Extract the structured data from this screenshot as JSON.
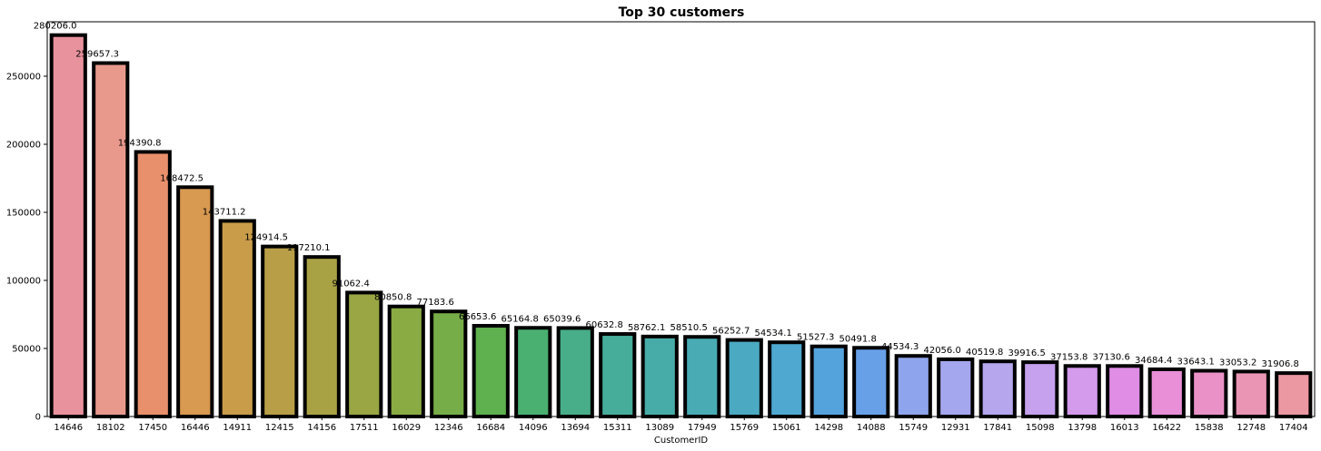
{
  "chart_data": {
    "type": "bar",
    "title": "Top 30 customers",
    "xlabel": "CustomerID",
    "ylabel": "",
    "ylim": [
      0,
      290000
    ],
    "yticks": [
      0,
      50000,
      100000,
      150000,
      200000,
      250000
    ],
    "grid": false,
    "legend": "none",
    "categories": [
      "14646",
      "18102",
      "17450",
      "16446",
      "14911",
      "12415",
      "14156",
      "17511",
      "16029",
      "12346",
      "16684",
      "14096",
      "13694",
      "15311",
      "13089",
      "17949",
      "15769",
      "15061",
      "14298",
      "14088",
      "15749",
      "12931",
      "17841",
      "15098",
      "13798",
      "16013",
      "16422",
      "15838",
      "12748",
      "17404"
    ],
    "values": [
      280206.0,
      259657.3,
      194390.8,
      168472.5,
      143711.2,
      124914.5,
      117210.1,
      91062.4,
      80850.8,
      77183.6,
      66653.6,
      65164.8,
      65039.6,
      60632.8,
      58762.1,
      58510.5,
      56252.7,
      54534.1,
      51527.3,
      50491.8,
      44534.3,
      42056.0,
      40519.8,
      39916.5,
      37153.8,
      37130.6,
      34684.4,
      33643.1,
      33053.2,
      31906.8
    ],
    "value_labels": [
      "280206.0",
      "259657.3",
      "194390.8",
      "168472.5",
      "143711.2",
      "124914.5",
      "117210.1",
      "91062.4",
      "80850.8",
      "77183.6",
      "66653.6",
      "65164.8",
      "65039.6",
      "60632.8",
      "58762.1",
      "58510.5",
      "56252.7",
      "54534.1",
      "51527.3",
      "50491.8",
      "44534.3",
      "42056.0",
      "40519.8",
      "39916.5",
      "37153.8",
      "37130.6",
      "34684.4",
      "33643.1",
      "33053.2",
      "31906.8"
    ],
    "colors": [
      "#e8929d",
      "#e8998c",
      "#e8906c",
      "#d89950",
      "#c99c49",
      "#b89e47",
      "#a9a245",
      "#9aa643",
      "#8aab44",
      "#77ad48",
      "#5fb04e",
      "#4ab071",
      "#48ae89",
      "#47ad9b",
      "#47aca8",
      "#49abb4",
      "#4ba9c1",
      "#4ea8cf",
      "#55a3dd",
      "#68a0e8",
      "#8ea4ec",
      "#a4a6ee",
      "#b5a6ee",
      "#c5a1ee",
      "#d49aec",
      "#e08de6",
      "#e88fd8",
      "#ea92c7",
      "#eb95b5",
      "#eb98a3"
    ]
  }
}
